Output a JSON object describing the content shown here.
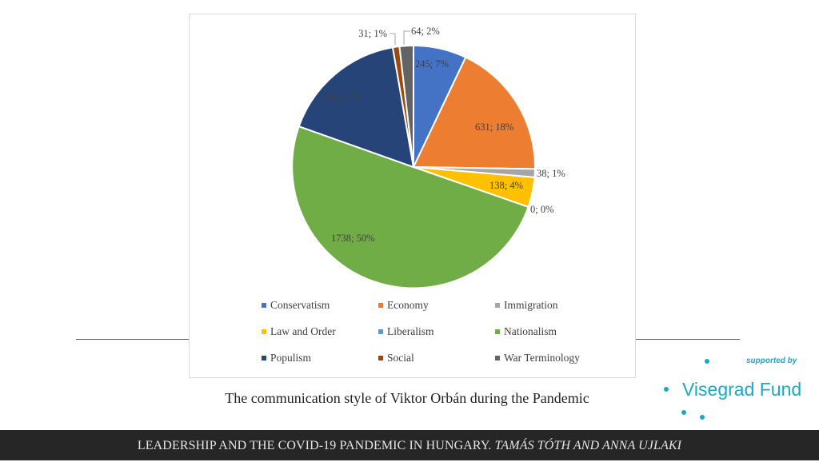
{
  "chart_data": {
    "type": "pie",
    "slices": [
      {
        "name": "Conservatism",
        "value": 245,
        "percent": "7%",
        "label": "245; 7%",
        "color": "#4472C4"
      },
      {
        "name": "Economy",
        "value": 631,
        "percent": "18%",
        "label": "631; 18%",
        "color": "#ED7D31"
      },
      {
        "name": "Immigration",
        "value": 38,
        "percent": "1%",
        "label": "38; 1%",
        "color": "#A5A5A5"
      },
      {
        "name": "Law and Order",
        "value": 138,
        "percent": "4%",
        "label": "138; 4%",
        "color": "#FFC000"
      },
      {
        "name": "Liberalism",
        "value": 0,
        "percent": "0%",
        "label": "0; 0%",
        "color": "#5B9BD5"
      },
      {
        "name": "Nationalism",
        "value": 1738,
        "percent": "50%",
        "label": "1738; 50%",
        "color": "#70AD47"
      },
      {
        "name": "Populism",
        "value": 584,
        "percent": "17%",
        "label": "584; 17%",
        "color": "#264478"
      },
      {
        "name": "Social",
        "value": 31,
        "percent": "1%",
        "label": "31; 1%",
        "color": "#9E480E"
      },
      {
        "name": "War Terminology",
        "value": 64,
        "percent": "2%",
        "label": "64; 2%",
        "color": "#636363"
      }
    ],
    "legend": [
      "Conservatism",
      "Economy",
      "Immigration",
      "Law and Order",
      "Liberalism",
      "Nationalism",
      "Populism",
      "Social",
      "War Terminology"
    ],
    "legend_position": "bottom"
  },
  "caption": "The communication style of Viktor Orbán during the Pandemic",
  "sponsor": {
    "supported_by": "supported by",
    "name": "Visegrad Fund",
    "color": "#1AA9C4"
  },
  "footer": {
    "title": "LEADERSHIP AND THE COVID-19 PANDEMIC IN HUNGARY.",
    "authors": "TAMÁS TÓTH AND ANNA UJLAKI"
  }
}
